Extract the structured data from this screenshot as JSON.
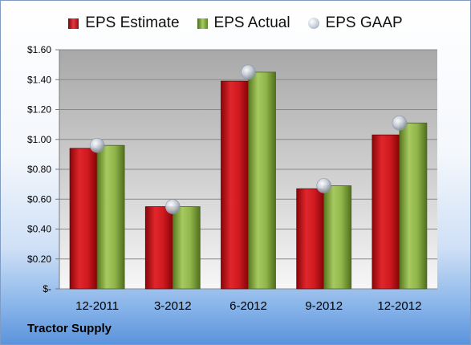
{
  "chart_data": {
    "type": "bar",
    "categories": [
      "12-2011",
      "3-2012",
      "6-2012",
      "9-2012",
      "12-2012"
    ],
    "series": [
      {
        "name": "EPS Estimate",
        "values": [
          0.94,
          0.55,
          1.39,
          0.67,
          1.03
        ],
        "color": "#c0161c"
      },
      {
        "name": "EPS Actual",
        "values": [
          0.96,
          0.55,
          1.45,
          0.69,
          1.11
        ],
        "color": "#7ea33a"
      },
      {
        "name": "EPS GAAP",
        "values": [
          0.96,
          0.55,
          1.45,
          0.69,
          1.11
        ],
        "color": "#b9c4d4",
        "marker": "circle"
      }
    ],
    "y_ticks": [
      "$-",
      "$0.20",
      "$0.40",
      "$0.60",
      "$0.80",
      "$1.00",
      "$1.20",
      "$1.40",
      "$1.60"
    ],
    "ylim": [
      0,
      1.6
    ],
    "grid": true,
    "legend_position": "top",
    "company": "Tractor Supply"
  }
}
